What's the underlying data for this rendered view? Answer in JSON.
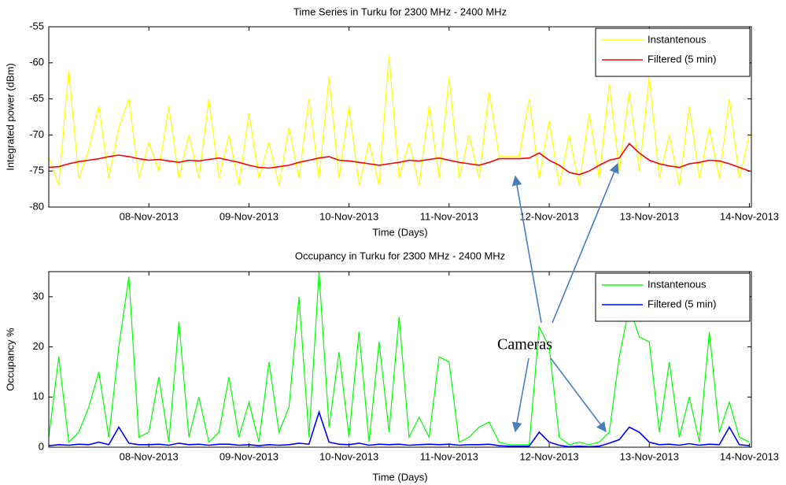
{
  "chart_data": [
    {
      "type": "line",
      "title": "Time Series in Turku for 2300 MHz - 2400 MHz",
      "xlabel": "Time (Days)",
      "ylabel": "Integrated power (dBm)",
      "x": [
        7.0,
        7.1,
        7.2,
        7.3,
        7.4,
        7.5,
        7.6,
        7.7,
        7.8,
        7.9,
        8.0,
        8.1,
        8.2,
        8.3,
        8.4,
        8.5,
        8.6,
        8.7,
        8.8,
        8.9,
        9.0,
        9.1,
        9.2,
        9.3,
        9.4,
        9.5,
        9.6,
        9.7,
        9.8,
        9.9,
        10.0,
        10.1,
        10.2,
        10.3,
        10.4,
        10.5,
        10.6,
        10.7,
        10.8,
        10.9,
        11.0,
        11.1,
        11.2,
        11.3,
        11.4,
        11.5,
        11.6,
        11.7,
        11.8,
        11.9,
        12.0,
        12.1,
        12.2,
        12.3,
        12.4,
        12.5,
        12.6,
        12.7,
        12.8,
        12.9,
        13.0,
        13.1,
        13.2,
        13.3,
        13.4,
        13.5,
        13.6,
        13.7,
        13.8,
        13.9,
        14.0
      ],
      "series": [
        {
          "name": "Instantenous",
          "color": "#ffff00",
          "values": [
            -73,
            -77,
            -61,
            -76,
            -72,
            -66,
            -76,
            -69,
            -65,
            -76,
            -71,
            -75,
            -66,
            -76,
            -70,
            -76,
            -65,
            -76,
            -70,
            -77,
            -67,
            -76,
            -71,
            -77,
            -69,
            -76,
            -65,
            -76,
            -62,
            -76,
            -66,
            -77,
            -71,
            -77,
            -59,
            -76,
            -71,
            -77,
            -66,
            -76,
            -62,
            -76,
            -70,
            -76,
            -64,
            -73,
            -73,
            -73,
            -65,
            -76,
            -68,
            -77,
            -70,
            -77,
            -67,
            -76,
            -63,
            -75,
            -64,
            -75,
            -62,
            -76,
            -70,
            -77,
            -66,
            -76,
            -69,
            -76,
            -65,
            -76,
            -70
          ]
        },
        {
          "name": "Filtered (5 min)",
          "color": "#ff0000",
          "values": [
            -74.5,
            -74.4,
            -74,
            -73.7,
            -73.5,
            -73.3,
            -73,
            -72.8,
            -73,
            -73.3,
            -73.5,
            -73.4,
            -73.6,
            -73.8,
            -73.5,
            -73.6,
            -73.4,
            -73.2,
            -73.5,
            -73.8,
            -74.2,
            -74.5,
            -74.6,
            -74.4,
            -74.2,
            -73.8,
            -73.5,
            -73.2,
            -73,
            -73.5,
            -73.6,
            -73.8,
            -74,
            -74.2,
            -74,
            -73.8,
            -73.5,
            -73.6,
            -73.4,
            -73.2,
            -73.5,
            -73.8,
            -74,
            -74.2,
            -73.8,
            -73.3,
            -73.3,
            -73.3,
            -73.2,
            -72.5,
            -73.5,
            -74.2,
            -75.2,
            -75.5,
            -75,
            -74.2,
            -73.5,
            -73.2,
            -71.2,
            -72.5,
            -73.5,
            -74,
            -74.3,
            -74.5,
            -74,
            -73.8,
            -73.5,
            -73.6,
            -74,
            -74.5,
            -75
          ]
        }
      ],
      "xlim": [
        7,
        14.02
      ],
      "ylim": [
        -80,
        -55
      ],
      "xticks": [
        {
          "value": 8,
          "label": "08-Nov-2013"
        },
        {
          "value": 9,
          "label": "09-Nov-2013"
        },
        {
          "value": 10,
          "label": "10-Nov-2013"
        },
        {
          "value": 11,
          "label": "11-Nov-2013"
        },
        {
          "value": 12,
          "label": "12-Nov-2013"
        },
        {
          "value": 13,
          "label": "13-Nov-2013"
        },
        {
          "value": 14,
          "label": "14-Nov-2013"
        }
      ],
      "yticks": [
        -80,
        -75,
        -70,
        -65,
        -60,
        -55
      ],
      "legend": "upper right"
    },
    {
      "type": "line",
      "title": "Occupancy in Turku for 2300 MHz - 2400 MHz",
      "xlabel": "Time (Days)",
      "ylabel": "Occupancy %",
      "annotation": "Cameras",
      "x": [
        7.0,
        7.1,
        7.2,
        7.3,
        7.4,
        7.5,
        7.6,
        7.7,
        7.8,
        7.9,
        8.0,
        8.1,
        8.2,
        8.3,
        8.4,
        8.5,
        8.6,
        8.7,
        8.8,
        8.9,
        9.0,
        9.1,
        9.2,
        9.3,
        9.4,
        9.5,
        9.6,
        9.7,
        9.8,
        9.9,
        10.0,
        10.1,
        10.2,
        10.3,
        10.4,
        10.5,
        10.6,
        10.7,
        10.8,
        10.9,
        11.0,
        11.1,
        11.2,
        11.3,
        11.4,
        11.5,
        11.6,
        11.7,
        11.8,
        11.9,
        12.0,
        12.1,
        12.2,
        12.3,
        12.4,
        12.5,
        12.6,
        12.7,
        12.8,
        12.9,
        13.0,
        13.1,
        13.2,
        13.3,
        13.4,
        13.5,
        13.6,
        13.7,
        13.8,
        13.9,
        14.0
      ],
      "series": [
        {
          "name": "Instantenous",
          "color": "#00ff00",
          "values": [
            2,
            18,
            1,
            3,
            8,
            15,
            2,
            20,
            34,
            2,
            3,
            14,
            1,
            25,
            2,
            10,
            1,
            3,
            14,
            2,
            9,
            1,
            17,
            3,
            8,
            30,
            2,
            35,
            4,
            19,
            2,
            23,
            1,
            21,
            3,
            26,
            2,
            6,
            2,
            18,
            17,
            1,
            2,
            4,
            5,
            1,
            0.5,
            0.5,
            0.5,
            24,
            20,
            2,
            0.5,
            1,
            0.5,
            1,
            3,
            18,
            28,
            22,
            21,
            3,
            17,
            2,
            10,
            1,
            23,
            3,
            9,
            2,
            1
          ]
        },
        {
          "name": "Filtered (5 min)",
          "color": "#0000ff",
          "values": [
            0.3,
            0.5,
            0.4,
            0.6,
            0.5,
            1,
            0.5,
            4,
            0.8,
            0.5,
            0.5,
            0.6,
            0.4,
            0.8,
            0.5,
            0.6,
            0.4,
            0.6,
            0.6,
            0.4,
            0.5,
            0.3,
            0.5,
            0.4,
            0.5,
            0.8,
            0.6,
            7,
            1,
            0.6,
            0.5,
            0.8,
            0.4,
            0.6,
            0.5,
            0.6,
            0.4,
            0.5,
            0.6,
            0.5,
            0.6,
            0.4,
            0.5,
            0.5,
            0.6,
            0.3,
            0.2,
            0.2,
            0.2,
            3,
            1,
            0.4,
            0.1,
            0.2,
            0.1,
            0.2,
            0.8,
            1.5,
            4,
            3,
            1,
            0.5,
            0.6,
            0.4,
            0.7,
            0.4,
            0.6,
            0.5,
            4,
            0.5,
            0.3
          ]
        }
      ],
      "xlim": [
        7,
        14.02
      ],
      "ylim": [
        0,
        35
      ],
      "xticks": [
        {
          "value": 8,
          "label": "08-Nov-2013"
        },
        {
          "value": 9,
          "label": "09-Nov-2013"
        },
        {
          "value": 10,
          "label": "10-Nov-2013"
        },
        {
          "value": 11,
          "label": "11-Nov-2013"
        },
        {
          "value": 12,
          "label": "12-Nov-2013"
        },
        {
          "value": 13,
          "label": "13-Nov-2013"
        },
        {
          "value": 14,
          "label": "14-Nov-2013"
        }
      ],
      "yticks": [
        0,
        10,
        20,
        30
      ],
      "legend": "upper right"
    }
  ]
}
